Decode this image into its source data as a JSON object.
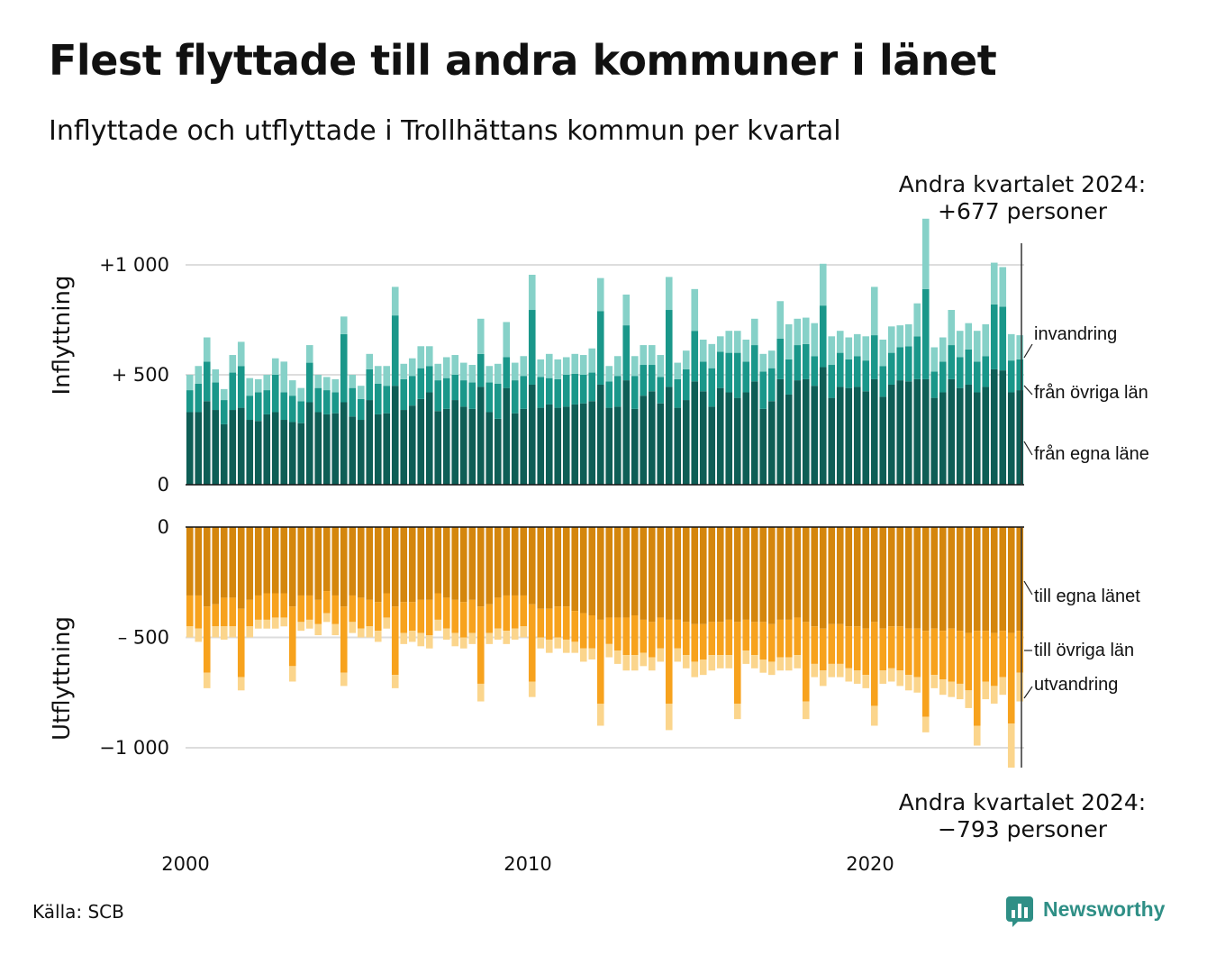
{
  "header": {
    "title": "Flest flyttade till andra kommuner i länet",
    "subtitle": "Inflyttade och utflyttade i Trollhättans kommun per kvartal"
  },
  "annotations": {
    "top_line1": "Andra kvartalet 2024:",
    "top_line2": "+677 personer",
    "bottom_line1": "Andra kvartalet 2024:",
    "bottom_line2": "−793 personer"
  },
  "footer": {
    "source": "Källa: SCB",
    "logo_text": "Newsworthy"
  },
  "colors": {
    "in_egna": "#0e5e56",
    "in_ovriga": "#1a978a",
    "in_invandring": "#86d1c8",
    "out_egna": "#d4860d",
    "out_ovriga": "#f7a21d",
    "out_utvandring": "#fbd58c",
    "gridline": "#dddddd",
    "logo": "#2f8f86"
  },
  "chart_data": {
    "type": "bar",
    "stacked": true,
    "x_unit": "kvartal",
    "x_start": "2000 Q1",
    "x_end": "2024 Q2",
    "x_ticks": [
      "2000",
      "2010",
      "2020"
    ],
    "panels": [
      {
        "name": "Inflyttning",
        "ylim": [
          0,
          1100
        ],
        "y_ticks": [
          {
            "value": 1000,
            "label": "+1 000"
          },
          {
            "value": 500,
            "label": "+  500"
          },
          {
            "value": 0,
            "label": "0"
          }
        ],
        "series": [
          {
            "name": "från egna länet",
            "legend_label": "från egna läne",
            "values": [
              330,
              330,
              380,
              340,
              275,
              340,
              350,
              295,
              290,
              320,
              330,
              295,
              285,
              280,
              375,
              330,
              320,
              325,
              375,
              310,
              295,
              385,
              320,
              325,
              450,
              340,
              360,
              390,
              420,
              335,
              345,
              385,
              355,
              345,
              445,
              330,
              300,
              440,
              325,
              345,
              455,
              350,
              365,
              350,
              355,
              365,
              370,
              380,
              455,
              350,
              355,
              475,
              345,
              405,
              425,
              370,
              445,
              350,
              385,
              470,
              425,
              355,
              440,
              420,
              395,
              420,
              470,
              345,
              380,
              480,
              410,
              475,
              480,
              450,
              535,
              395,
              445,
              440,
              445,
              425,
              480,
              400,
              455,
              475,
              470,
              480,
              480,
              395,
              420,
              480,
              440,
              455,
              420,
              445,
              525,
              520,
              420,
              430
            ]
          },
          {
            "name": "från övriga län",
            "values": [
              100,
              130,
              180,
              125,
              110,
              170,
              190,
              110,
              130,
              110,
              170,
              125,
              120,
              100,
              180,
              110,
              110,
              95,
              310,
              130,
              95,
              140,
              140,
              125,
              320,
              140,
              135,
              140,
              120,
              140,
              140,
              115,
              120,
              120,
              150,
              135,
              160,
              140,
              150,
              150,
              340,
              140,
              120,
              130,
              145,
              140,
              130,
              130,
              335,
              120,
              140,
              250,
              150,
              140,
              120,
              120,
              350,
              130,
              140,
              230,
              135,
              175,
              165,
              180,
              205,
              140,
              165,
              170,
              150,
              185,
              160,
              160,
              160,
              135,
              280,
              150,
              155,
              130,
              140,
              140,
              200,
              140,
              145,
              150,
              160,
              195,
              410,
              120,
              140,
              155,
              140,
              160,
              140,
              140,
              295,
              290,
              145,
              140
            ]
          },
          {
            "name": "invandring",
            "values": [
              70,
              80,
              110,
              60,
              50,
              80,
              110,
              80,
              60,
              70,
              75,
              140,
              70,
              60,
              80,
              60,
              60,
              60,
              80,
              60,
              60,
              70,
              80,
              90,
              130,
              70,
              80,
              100,
              90,
              75,
              95,
              90,
              80,
              80,
              160,
              75,
              90,
              160,
              80,
              90,
              160,
              80,
              110,
              90,
              80,
              90,
              90,
              110,
              150,
              70,
              90,
              140,
              90,
              90,
              90,
              100,
              150,
              75,
              85,
              190,
              100,
              110,
              70,
              100,
              100,
              100,
              120,
              80,
              80,
              170,
              160,
              120,
              120,
              150,
              190,
              130,
              100,
              100,
              100,
              110,
              220,
              120,
              120,
              100,
              100,
              150,
              320,
              110,
              110,
              160,
              120,
              120,
              140,
              145,
              190,
              180,
              120,
              110
            ]
          }
        ]
      },
      {
        "name": "Utflyttning",
        "ylim": [
          -1100,
          0
        ],
        "y_ticks": [
          {
            "value": 0,
            "label": "0"
          },
          {
            "value": -500,
            "label": "–  500"
          },
          {
            "value": -1000,
            "label": "−1 000"
          }
        ],
        "series": [
          {
            "name": "till egna länet",
            "values": [
              -310,
              -310,
              -360,
              -350,
              -320,
              -320,
              -370,
              -330,
              -310,
              -300,
              -300,
              -300,
              -360,
              -310,
              -310,
              -330,
              -290,
              -310,
              -360,
              -310,
              -320,
              -330,
              -340,
              -300,
              -360,
              -340,
              -340,
              -330,
              -330,
              -300,
              -320,
              -330,
              -340,
              -330,
              -360,
              -350,
              -320,
              -310,
              -310,
              -310,
              -350,
              -370,
              -370,
              -360,
              -360,
              -380,
              -390,
              -400,
              -420,
              -410,
              -410,
              -410,
              -400,
              -420,
              -430,
              -410,
              -420,
              -420,
              -430,
              -440,
              -440,
              -430,
              -430,
              -420,
              -430,
              -420,
              -430,
              -430,
              -440,
              -420,
              -420,
              -410,
              -430,
              -450,
              -460,
              -440,
              -440,
              -450,
              -450,
              -460,
              -430,
              -460,
              -450,
              -450,
              -460,
              -460,
              -470,
              -460,
              -470,
              -460,
              -470,
              -480,
              -470,
              -470,
              -480,
              -470,
              -480,
              -470
            ]
          },
          {
            "name": "till övriga län",
            "values": [
              -140,
              -150,
              -300,
              -100,
              -130,
              -130,
              -310,
              -120,
              -110,
              -120,
              -110,
              -110,
              -270,
              -120,
              -110,
              -110,
              -100,
              -130,
              -300,
              -120,
              -140,
              -120,
              -130,
              -110,
              -310,
              -140,
              -130,
              -150,
              -160,
              -120,
              -140,
              -150,
              -160,
              -150,
              -350,
              -130,
              -140,
              -160,
              -150,
              -140,
              -350,
              -130,
              -140,
              -140,
              -150,
              -140,
              -160,
              -150,
              -380,
              -120,
              -150,
              -170,
              -180,
              -150,
              -160,
              -140,
              -380,
              -130,
              -150,
              -170,
              -160,
              -150,
              -150,
              -160,
              -370,
              -140,
              -150,
              -170,
              -170,
              -170,
              -170,
              -170,
              -360,
              -170,
              -190,
              -180,
              -180,
              -190,
              -200,
              -210,
              -380,
              -190,
              -190,
              -200,
              -210,
              -220,
              -390,
              -210,
              -220,
              -240,
              -240,
              -260,
              -430,
              -230,
              -240,
              -210,
              -410,
              -190
            ]
          },
          {
            "name": "utvandring",
            "values": [
              -50,
              -60,
              -70,
              -50,
              -60,
              -50,
              -60,
              -50,
              -40,
              -40,
              -50,
              -40,
              -70,
              -40,
              -40,
              -50,
              -40,
              -50,
              -60,
              -50,
              -40,
              -50,
              -50,
              -50,
              -60,
              -50,
              -50,
              -60,
              -60,
              -50,
              -50,
              -60,
              -50,
              -50,
              -80,
              -50,
              -50,
              -60,
              -50,
              -50,
              -70,
              -50,
              -60,
              -50,
              -60,
              -50,
              -60,
              -50,
              -100,
              -60,
              -60,
              -70,
              -70,
              -60,
              -60,
              -60,
              -120,
              -60,
              -60,
              -70,
              -70,
              -70,
              -60,
              -60,
              -70,
              -60,
              -60,
              -60,
              -60,
              -60,
              -60,
              -60,
              -80,
              -60,
              -70,
              -60,
              -60,
              -60,
              -60,
              -60,
              -90,
              -60,
              -60,
              -70,
              -70,
              -70,
              -70,
              -60,
              -70,
              -70,
              -70,
              -80,
              -90,
              -80,
              -80,
              -80,
              -200,
              -130
            ]
          }
        ]
      }
    ],
    "legend": {
      "in": [
        "invandring",
        "från övriga län",
        "från egna läne"
      ],
      "out": [
        "till egna länet",
        "till övriga län",
        "utvandring"
      ],
      "placement": "right"
    },
    "grid": true
  }
}
